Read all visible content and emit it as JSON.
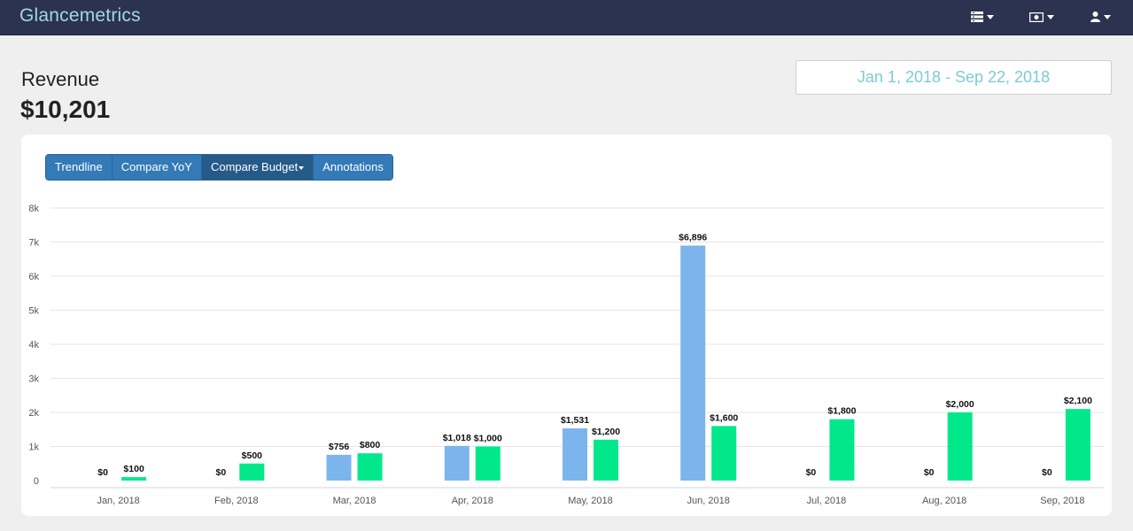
{
  "navbar": {
    "brand": "Glancemetrics",
    "icons": [
      "dashboards-icon",
      "billing-icon",
      "user-icon"
    ]
  },
  "header": {
    "title": "Revenue",
    "total": "$10,201",
    "date_range": "Jan 1, 2018 - Sep 22, 2018"
  },
  "toolbar": {
    "trendline": "Trendline",
    "compare_yoy": "Compare YoY",
    "compare_budget": "Compare Budget",
    "annotations": "Annotations",
    "active": "compare_budget"
  },
  "colors": {
    "actual": "#7cb5ec",
    "budget": "#00e88a",
    "navbar": "#2c3350",
    "button": "#337ab7"
  },
  "chart_data": {
    "type": "bar",
    "categories": [
      "Jan, 2018",
      "Feb, 2018",
      "Mar, 2018",
      "Apr, 2018",
      "May, 2018",
      "Jun, 2018",
      "Jul, 2018",
      "Aug, 2018",
      "Sep, 2018"
    ],
    "series": [
      {
        "values": [
          0,
          0,
          756,
          1018,
          1531,
          6896,
          0,
          0,
          0
        ],
        "labels": [
          "$0",
          "$0",
          "$756",
          "$1,018",
          "$1,531",
          "$6,896",
          "$0",
          "$0",
          "$0"
        ],
        "color": "#7cb5ec"
      },
      {
        "values": [
          100,
          500,
          800,
          1000,
          1200,
          1600,
          1800,
          2000,
          2100
        ],
        "labels": [
          "$100",
          "$500",
          "$800",
          "$1,000",
          "$1,200",
          "$1,600",
          "$1,800",
          "$2,000",
          "$2,100"
        ],
        "color": "#00e88a"
      }
    ],
    "ylim": [
      0,
      8000
    ],
    "yticks": [
      0,
      1000,
      2000,
      3000,
      4000,
      5000,
      6000,
      7000,
      8000
    ],
    "ytick_labels": [
      "0",
      "1k",
      "2k",
      "3k",
      "4k",
      "5k",
      "6k",
      "7k",
      "8k"
    ],
    "grid": true,
    "legend": "none",
    "title": "",
    "xlabel": "",
    "ylabel": ""
  }
}
